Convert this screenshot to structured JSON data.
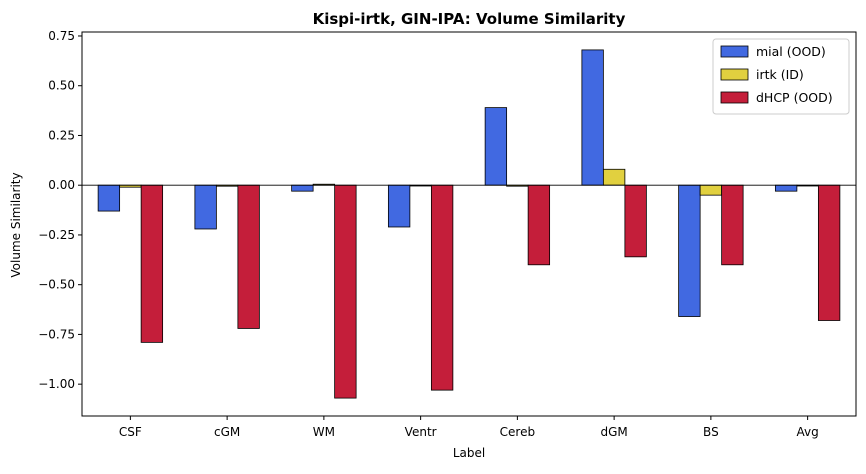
{
  "chart_data": {
    "type": "bar",
    "title": "Kispi-irtk, GIN-IPA: Volume Similarity",
    "xlabel": "Label",
    "ylabel": "Volume Similarity",
    "categories": [
      "CSF",
      "cGM",
      "WM",
      "Ventr",
      "Cereb",
      "dGM",
      "BS",
      "Avg"
    ],
    "series": [
      {
        "name": "mial (OOD)",
        "color": "#4169e1",
        "values": [
          -0.13,
          -0.22,
          -0.03,
          -0.21,
          0.39,
          0.68,
          -0.66,
          -0.03
        ]
      },
      {
        "name": "irtk (ID)",
        "color": "#e1d03f",
        "values": [
          -0.01,
          -0.005,
          0.005,
          0.0,
          -0.005,
          0.08,
          -0.05,
          0.0
        ]
      },
      {
        "name": "dHCP (OOD)",
        "color": "#c41e3a",
        "values": [
          -0.79,
          -0.72,
          -1.07,
          -1.03,
          -0.4,
          -0.36,
          -0.4,
          -0.68
        ]
      }
    ],
    "ylim": [
      -1.16,
      0.77
    ],
    "yticks": [
      0.75,
      0.5,
      0.25,
      0.0,
      -0.25,
      -0.5,
      -0.75,
      -1.0
    ],
    "ytick_labels": [
      "0.75",
      "0.50",
      "0.25",
      "0.00",
      "−0.25",
      "−0.50",
      "−0.75",
      "−1.00"
    ],
    "grid": false,
    "zero_line": true,
    "legend": "top-right"
  }
}
